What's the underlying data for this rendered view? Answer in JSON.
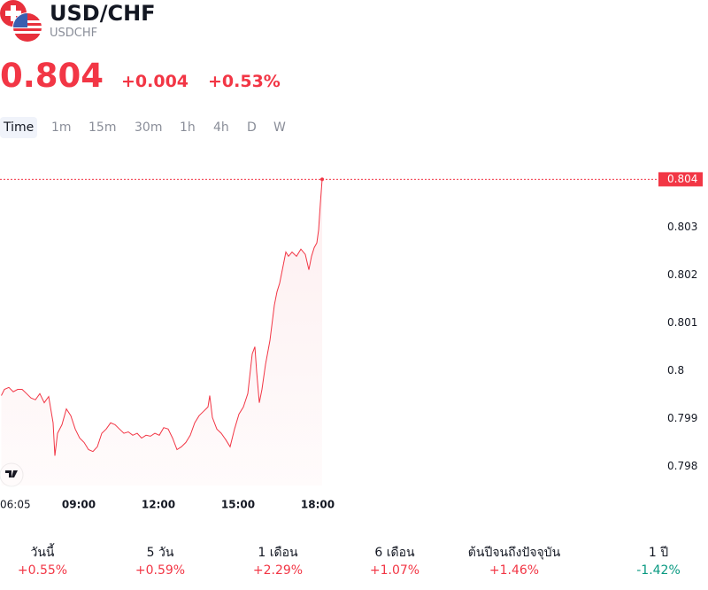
{
  "header": {
    "title": "USD/CHF",
    "symbol": "USDCHF",
    "price": "0.804",
    "change": "+0.004",
    "change_percent": "+0.53%"
  },
  "tabs": [
    "Time",
    "1m",
    "15m",
    "30m",
    "1h",
    "4h",
    "D",
    "W"
  ],
  "chart_data": {
    "type": "line",
    "x": [
      365,
      372,
      382,
      392,
      402,
      412,
      422,
      432,
      442,
      452,
      462,
      472,
      482,
      486,
      492,
      502,
      512,
      522,
      532,
      542,
      552,
      562,
      572,
      582,
      592,
      602,
      612,
      622,
      632,
      642,
      652,
      662,
      672,
      682,
      692,
      702,
      712,
      722,
      732,
      742,
      752,
      762,
      772,
      782,
      792,
      802,
      812,
      822,
      832,
      836,
      842,
      852,
      862,
      872,
      882,
      892,
      902,
      912,
      922,
      932,
      938,
      942,
      948,
      954,
      962,
      972,
      982,
      988,
      994,
      1002,
      1008,
      1014,
      1022,
      1032,
      1042,
      1052,
      1060,
      1066,
      1072,
      1078,
      1082,
      1086,
      1090
    ],
    "series": [
      {
        "color": "#f23645",
        "values": [
          0.79948,
          0.79961,
          0.79965,
          0.79956,
          0.79961,
          0.79961,
          0.79952,
          0.79943,
          0.79939,
          0.79952,
          0.79933,
          0.79946,
          0.79891,
          0.79822,
          0.79869,
          0.79887,
          0.7992,
          0.79906,
          0.79878,
          0.79859,
          0.7985,
          0.79835,
          0.79831,
          0.79841,
          0.79869,
          0.79878,
          0.79891,
          0.79887,
          0.79878,
          0.79869,
          0.79872,
          0.79865,
          0.79869,
          0.79859,
          0.79865,
          0.79863,
          0.79869,
          0.79865,
          0.79881,
          0.79878,
          0.79859,
          0.79835,
          0.79841,
          0.7985,
          0.79865,
          0.79891,
          0.79906,
          0.79915,
          0.79924,
          0.79948,
          0.79902,
          0.79878,
          0.79869,
          0.79856,
          0.79841,
          0.79878,
          0.79909,
          0.79924,
          0.79952,
          0.80035,
          0.8005,
          0.79998,
          0.79933,
          0.79961,
          0.80013,
          0.80063,
          0.80137,
          0.80165,
          0.80183,
          0.8022,
          0.80248,
          0.80239,
          0.80248,
          0.80239,
          0.80254,
          0.80243,
          0.80211,
          0.80239,
          0.80257,
          0.80267,
          0.80294,
          0.8035,
          0.804
        ]
      }
    ],
    "xlim": [
      362,
      1840
    ],
    "xticks": [
      {
        "value": 365,
        "label": "06:05"
      },
      {
        "value": 540,
        "label": "09:00"
      },
      {
        "value": 720,
        "label": "12:00"
      },
      {
        "value": 900,
        "label": "15:00"
      },
      {
        "value": 1080,
        "label": "18:00"
      }
    ],
    "ylim": [
      0.7976,
      0.8044
    ],
    "yticks": [
      0.798,
      0.799,
      0.8,
      0.801,
      0.802,
      0.803
    ]
  },
  "stats": {
    "labels": [
      "วันนี้",
      "5 วัน",
      "1 เดือน",
      "6 เดือน",
      "ต้นปีจนถึงปัจจุบัน",
      "1 ปี"
    ],
    "values": [
      "+0.55%",
      "+0.59%",
      "+2.29%",
      "+1.07%",
      "+1.46%",
      "-1.42%"
    ]
  }
}
